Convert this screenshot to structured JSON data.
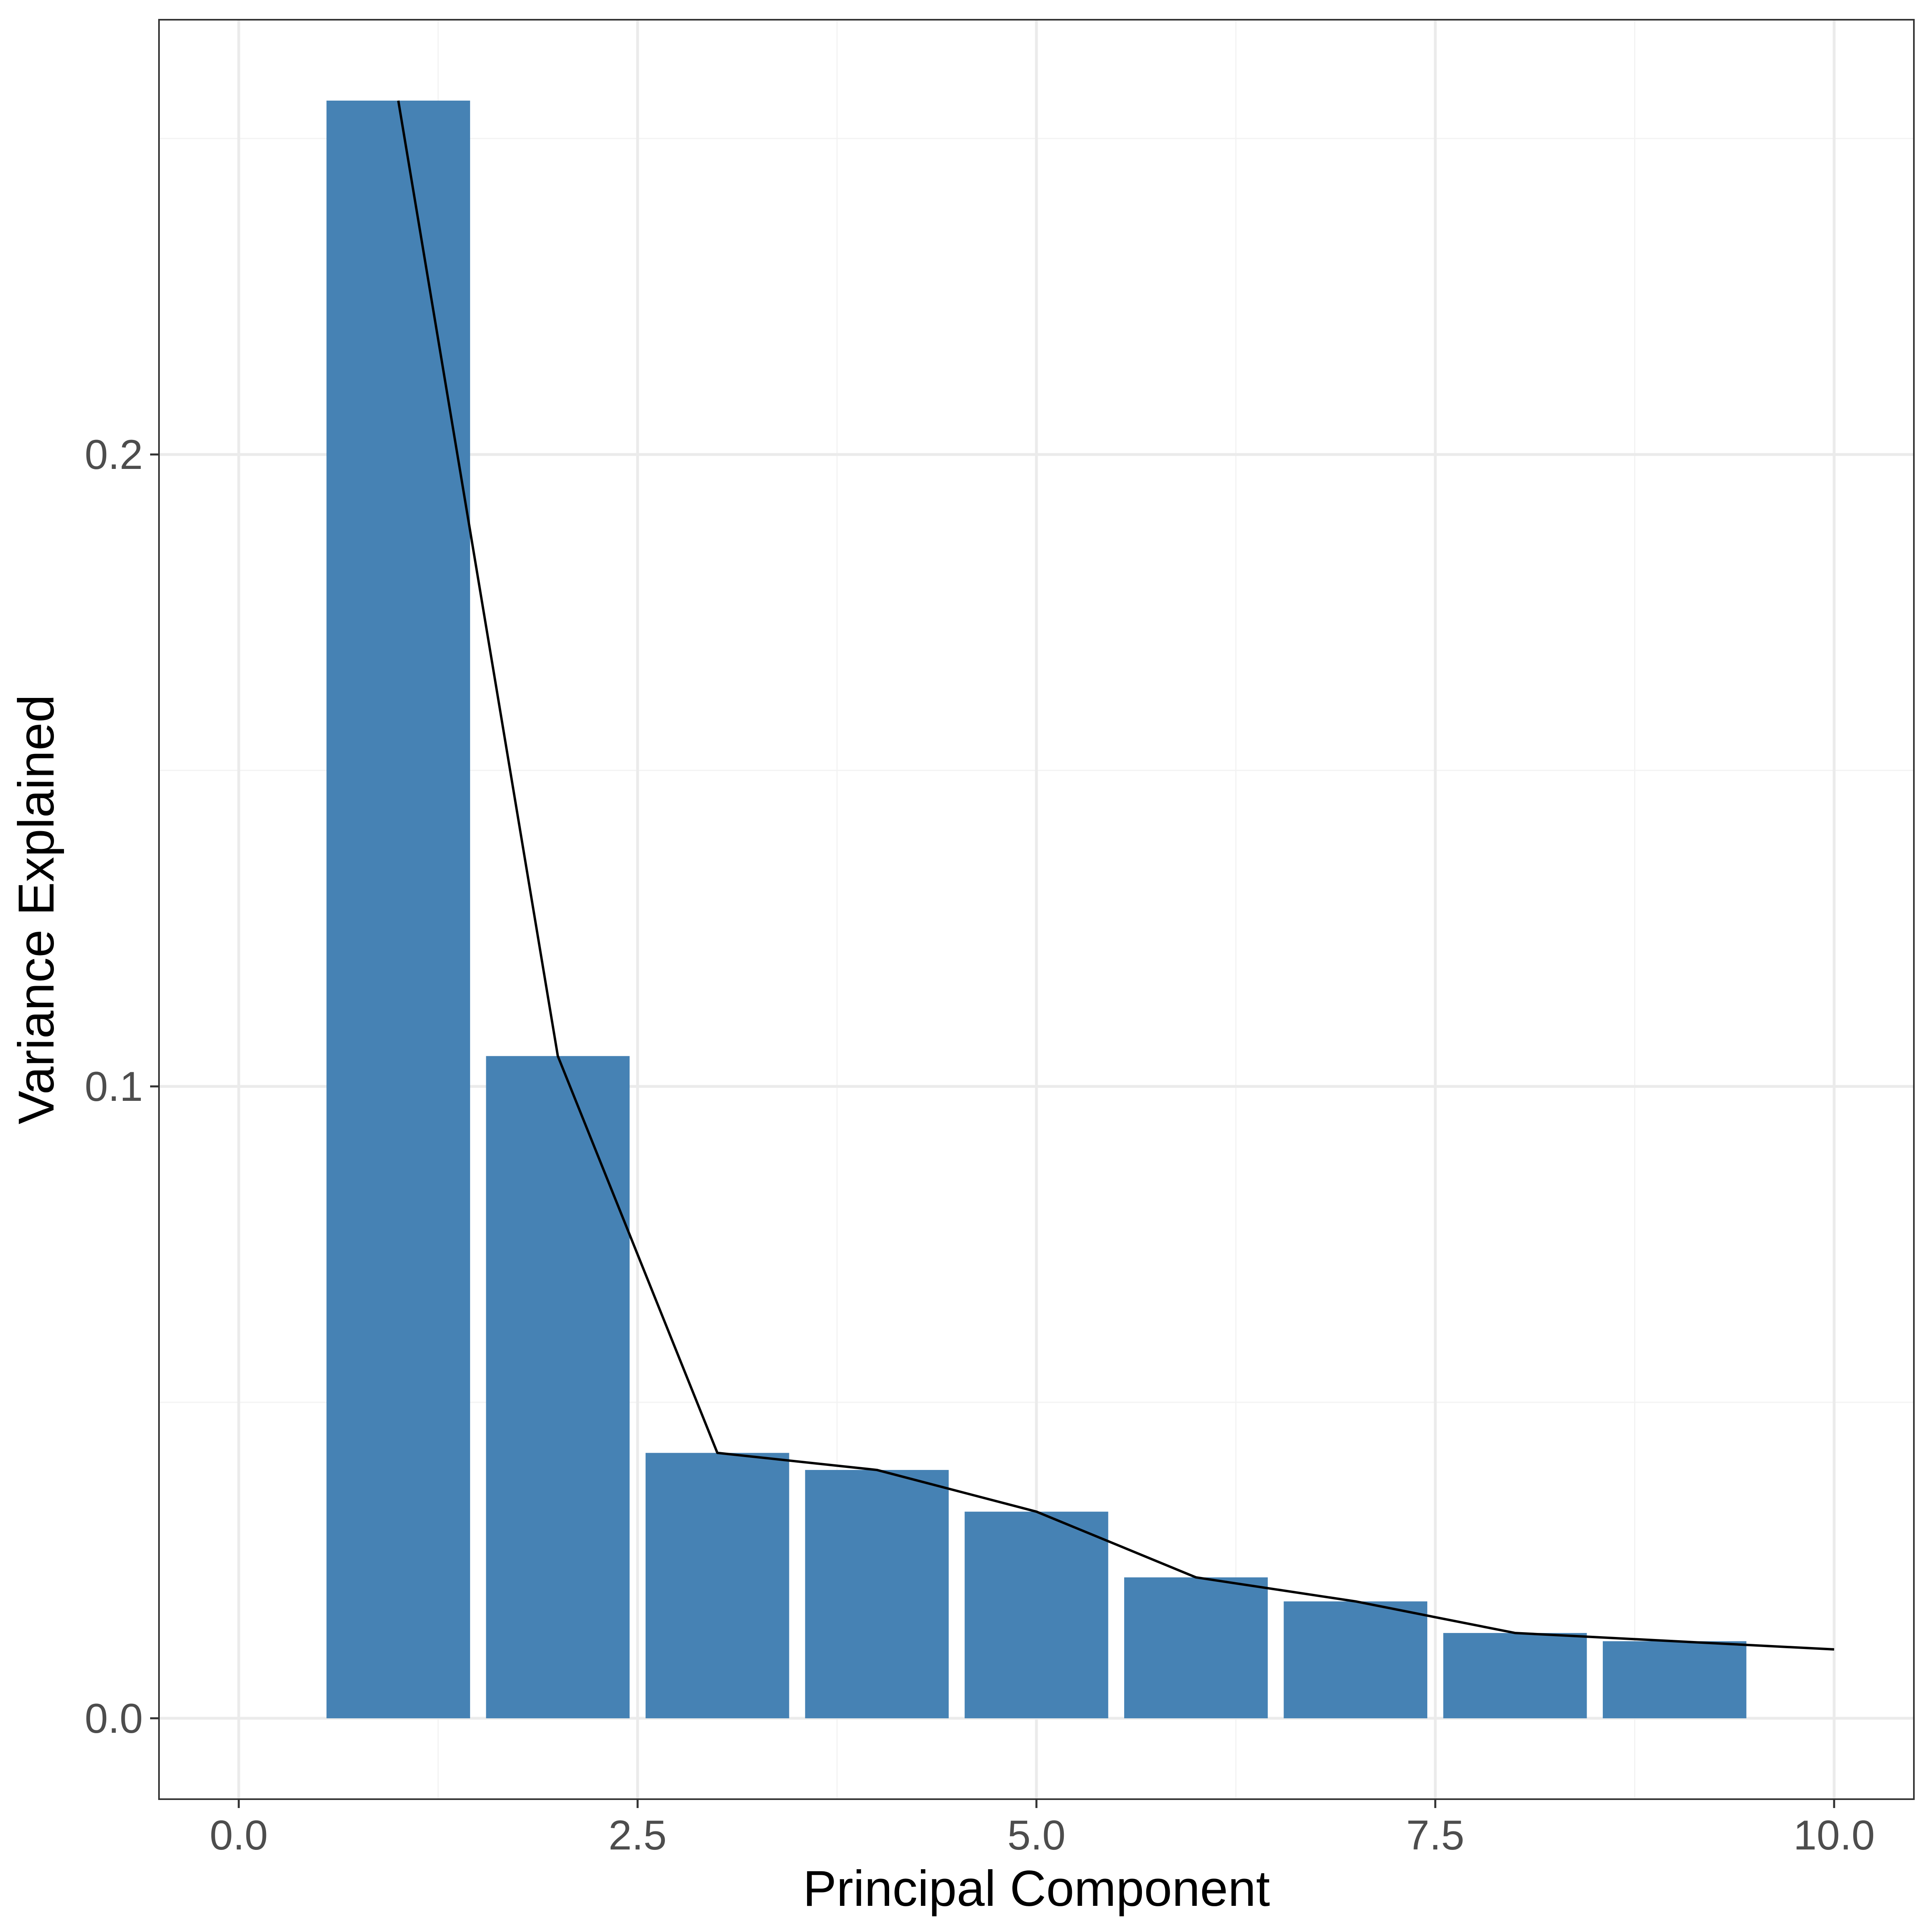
{
  "chart_data": {
    "type": "bar",
    "title": "",
    "xlabel": "Principal Component",
    "ylabel": "Variance Explained",
    "xlim": [
      -0.5,
      10.5
    ],
    "ylim": [
      -0.0128,
      0.2688
    ],
    "x_ticks": [
      0.0,
      2.5,
      5.0,
      7.5,
      10.0
    ],
    "x_tick_labels": [
      "0.0",
      "2.5",
      "5.0",
      "7.5",
      "10.0"
    ],
    "y_ticks": [
      0.0,
      0.1,
      0.2
    ],
    "y_tick_labels": [
      "0.0",
      "0.1",
      "0.2"
    ],
    "x_minor_ticks": [
      1.25,
      3.75,
      6.25,
      8.75
    ],
    "y_minor_ticks": [
      0.05,
      0.15,
      0.25
    ],
    "grid": true,
    "legend": "none",
    "series": [
      {
        "type": "bar",
        "x": [
          1,
          2,
          3,
          4,
          5,
          6,
          7,
          8,
          9
        ],
        "values": [
          0.256,
          0.1048,
          0.042,
          0.0393,
          0.0327,
          0.0223,
          0.0185,
          0.0135,
          0.0122
        ],
        "color": "#4682B4"
      },
      {
        "type": "line",
        "x": [
          1,
          2,
          3,
          4,
          5,
          6,
          7,
          8,
          9,
          10
        ],
        "values": [
          0.256,
          0.1048,
          0.042,
          0.0393,
          0.0327,
          0.0223,
          0.0185,
          0.0135,
          0.0122,
          0.0109
        ],
        "color": "#000000"
      }
    ]
  },
  "style": {
    "background": "#FFFFFF",
    "panel_border": "#333333",
    "grid_major": "#EBEBEB",
    "grid_minor": "#F3F3F3",
    "tick_label_color": "#4D4D4D",
    "axis_title_color": "#000000"
  }
}
